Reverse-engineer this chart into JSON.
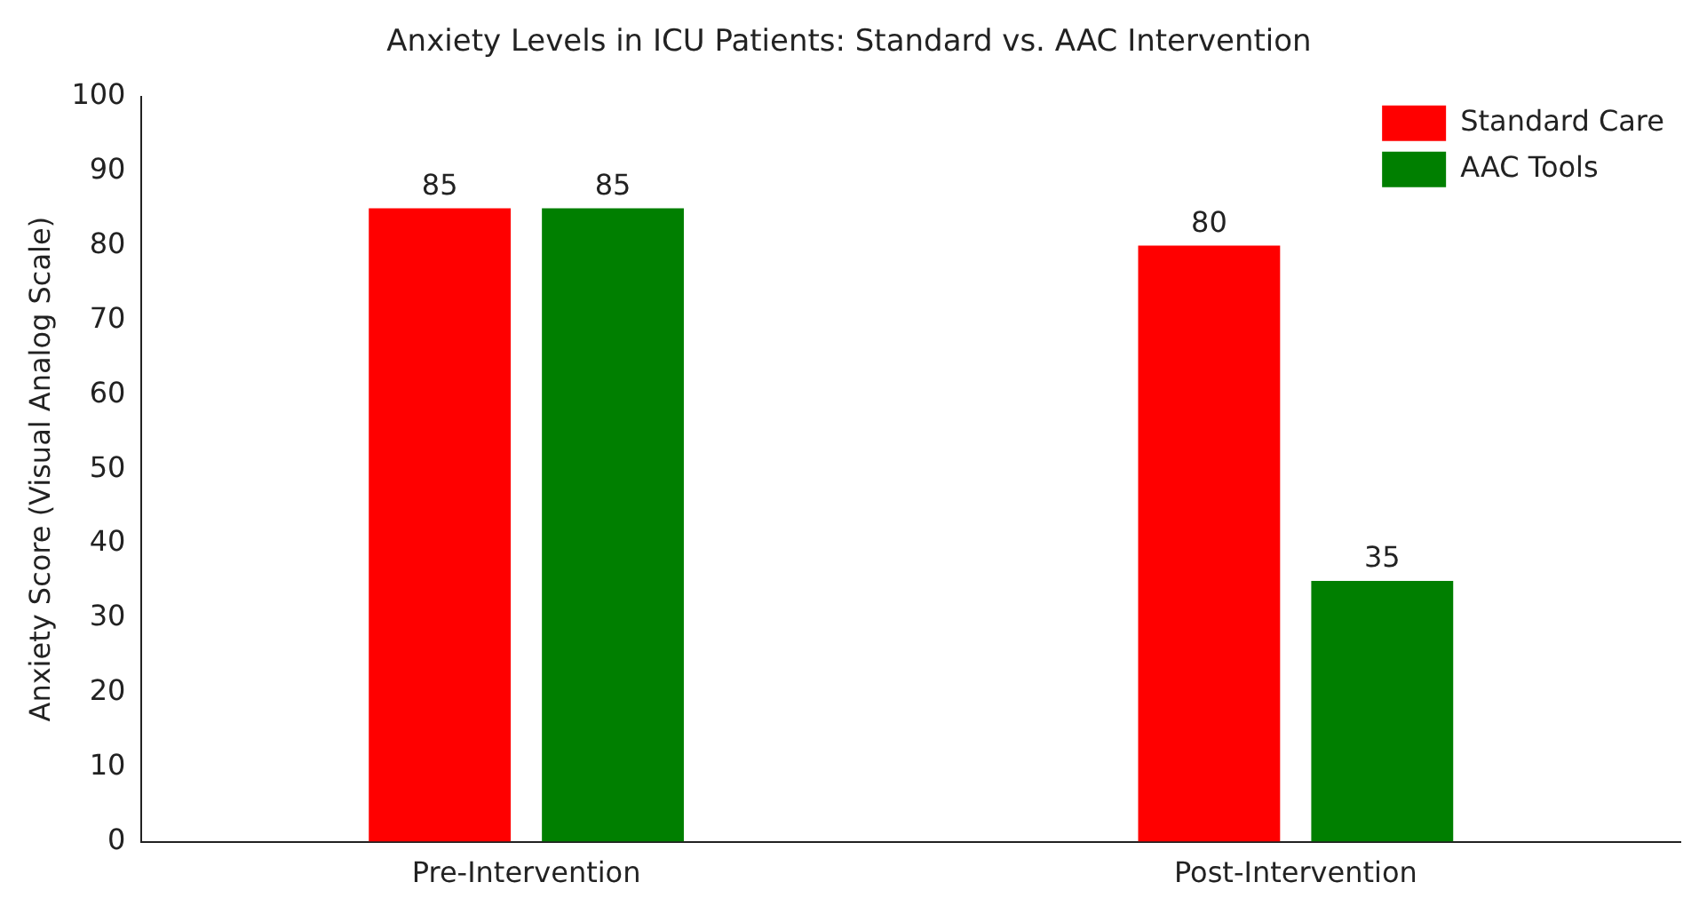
{
  "chart_data": {
    "type": "bar",
    "title": "Anxiety Levels in ICU Patients: Standard vs. AAC Intervention",
    "ylabel": "Anxiety Score (Visual Analog Scale)",
    "categories": [
      "Pre-Intervention",
      "Post-Intervention"
    ],
    "series": [
      {
        "name": "Standard Care",
        "color": "#ff0000",
        "values": [
          85,
          80
        ]
      },
      {
        "name": "AAC Tools",
        "color": "#007f00",
        "values": [
          85,
          35
        ]
      }
    ],
    "ylim": [
      0,
      100
    ],
    "yticks": [
      0,
      10,
      20,
      30,
      40,
      50,
      60,
      70,
      80,
      90,
      100
    ],
    "grid": false,
    "legend": "top right",
    "data_labels": true
  }
}
